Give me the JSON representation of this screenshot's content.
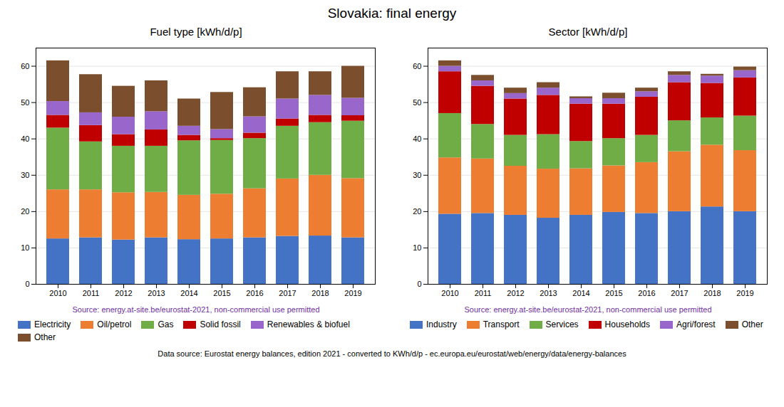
{
  "title": "Slovakia: final energy",
  "annotations": [
    "Data source: Eurostat energy balances, edition 2021 - converted to KWh/d/p - ec.europa.eu/eurostat/web/energy/data/energy-balances"
  ],
  "chart_data": [
    {
      "type": "bar",
      "title": "Fuel type [kWh/d/p]",
      "stacked": true,
      "grid": true,
      "legend": "bottom",
      "categories": [
        "2010",
        "2011",
        "2012",
        "2013",
        "2014",
        "2015",
        "2016",
        "2017",
        "2018",
        "2019"
      ],
      "series": [
        {
          "name": "Electricity",
          "color": "#4472c4",
          "values": [
            12.5,
            12.8,
            12.2,
            12.8,
            12.3,
            12.5,
            12.8,
            13.2,
            13.3,
            12.8
          ]
        },
        {
          "name": "Oil/petrol",
          "color": "#ed7d31",
          "values": [
            13.5,
            13.2,
            13.0,
            12.5,
            12.2,
            12.3,
            13.5,
            15.8,
            16.7,
            16.3
          ]
        },
        {
          "name": "Gas",
          "color": "#70ad47",
          "values": [
            17.0,
            13.2,
            12.8,
            12.7,
            15.0,
            14.8,
            13.8,
            14.5,
            14.5,
            15.8
          ]
        },
        {
          "name": "Solid fossil",
          "color": "#c00000",
          "values": [
            3.5,
            4.5,
            3.2,
            4.5,
            1.5,
            0.5,
            1.5,
            2.0,
            2.0,
            1.5
          ]
        },
        {
          "name": "Renewables & biofuel",
          "color": "#9966cc",
          "values": [
            3.8,
            3.5,
            4.8,
            5.0,
            2.5,
            2.5,
            4.5,
            5.5,
            5.5,
            4.8
          ]
        },
        {
          "name": "Other",
          "color": "#7b4f2e",
          "values": [
            11.2,
            10.5,
            8.5,
            8.5,
            7.5,
            10.2,
            8.0,
            7.5,
            6.5,
            8.8
          ]
        }
      ],
      "ylim": [
        0,
        65
      ],
      "yticks": [
        0,
        10,
        20,
        30,
        40,
        50,
        60
      ],
      "annotations": [
        "Source: energy.at-site.be/eurostat-2021, non-commercial use permitted"
      ]
    },
    {
      "type": "bar",
      "title": "Sector [kWh/d/p]",
      "stacked": true,
      "grid": true,
      "legend": "bottom",
      "categories": [
        "2010",
        "2011",
        "2012",
        "2013",
        "2014",
        "2015",
        "2016",
        "2017",
        "2018",
        "2019"
      ],
      "series": [
        {
          "name": "Industry",
          "color": "#4472c4",
          "values": [
            19.3,
            19.5,
            19.0,
            18.2,
            19.0,
            19.8,
            19.5,
            20.0,
            21.3,
            20.0
          ]
        },
        {
          "name": "Transport",
          "color": "#ed7d31",
          "values": [
            15.5,
            15.0,
            13.5,
            13.5,
            12.8,
            12.8,
            14.0,
            16.5,
            17.0,
            16.8
          ]
        },
        {
          "name": "Services",
          "color": "#70ad47",
          "values": [
            12.2,
            9.5,
            8.5,
            9.5,
            7.5,
            7.5,
            7.5,
            8.5,
            7.5,
            9.5
          ]
        },
        {
          "name": "Households",
          "color": "#c00000",
          "values": [
            11.5,
            10.5,
            10.0,
            10.8,
            10.3,
            9.5,
            10.5,
            10.5,
            9.5,
            10.5
          ]
        },
        {
          "name": "Agri/forest",
          "color": "#9966cc",
          "values": [
            1.5,
            1.5,
            1.5,
            2.0,
            1.5,
            1.5,
            1.5,
            2.0,
            2.0,
            2.0
          ]
        },
        {
          "name": "Other",
          "color": "#7b4f2e",
          "values": [
            1.5,
            1.5,
            1.5,
            1.5,
            0.5,
            1.5,
            1.0,
            1.0,
            0.5,
            1.0
          ]
        }
      ],
      "ylim": [
        0,
        65
      ],
      "yticks": [
        0,
        10,
        20,
        30,
        40,
        50,
        60
      ],
      "annotations": [
        "Source: energy.at-site.be/eurostat-2021, non-commercial use permitted"
      ]
    }
  ]
}
